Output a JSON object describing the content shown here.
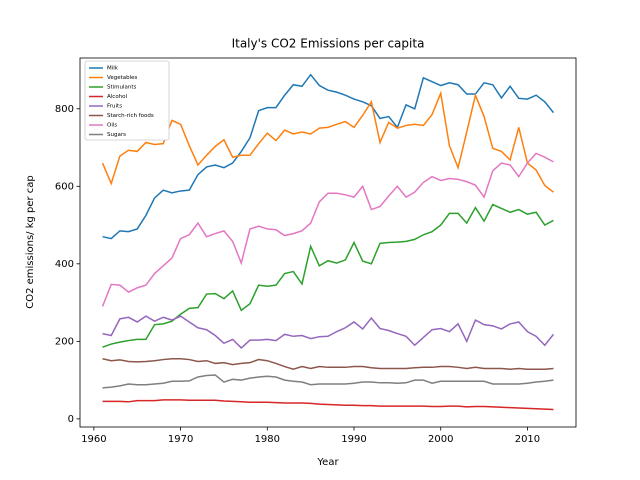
{
  "chart_data": {
    "type": "line",
    "title": "Italy's CO2 Emissions per capita",
    "xlabel": "Year",
    "ylabel": "CO2 emissions/ kg per cap",
    "x": [
      1961,
      1962,
      1963,
      1964,
      1965,
      1966,
      1967,
      1968,
      1969,
      1970,
      1971,
      1972,
      1973,
      1974,
      1975,
      1976,
      1977,
      1978,
      1979,
      1980,
      1981,
      1982,
      1983,
      1984,
      1985,
      1986,
      1987,
      1988,
      1989,
      1990,
      1991,
      1992,
      1993,
      1994,
      1995,
      1996,
      1997,
      1998,
      1999,
      2000,
      2001,
      2002,
      2003,
      2004,
      2005,
      2006,
      2007,
      2008,
      2009,
      2010,
      2011,
      2012,
      2013
    ],
    "series": [
      {
        "name": "Milk",
        "color": "#1f77b4",
        "values": [
          470,
          465,
          485,
          483,
          490,
          525,
          570,
          590,
          583,
          588,
          590,
          630,
          650,
          655,
          648,
          660,
          690,
          725,
          795,
          803,
          803,
          835,
          862,
          858,
          888,
          860,
          848,
          843,
          835,
          825,
          818,
          808,
          775,
          780,
          752,
          810,
          800,
          880,
          870,
          860,
          867,
          862,
          838,
          838,
          867,
          862,
          828,
          858,
          827,
          825,
          835,
          818,
          790
        ]
      },
      {
        "name": "Vegetables",
        "color": "#ff7f0e",
        "values": [
          660,
          607,
          678,
          693,
          690,
          713,
          708,
          710,
          770,
          760,
          705,
          655,
          680,
          703,
          720,
          675,
          680,
          680,
          710,
          737,
          718,
          745,
          735,
          740,
          735,
          750,
          752,
          760,
          767,
          752,
          783,
          818,
          713,
          765,
          750,
          757,
          760,
          757,
          785,
          840,
          705,
          648,
          740,
          835,
          780,
          698,
          690,
          668,
          752,
          660,
          642,
          602,
          585
        ]
      },
      {
        "name": "Stimulants",
        "color": "#2ca02c",
        "values": [
          185,
          193,
          198,
          202,
          205,
          205,
          243,
          245,
          252,
          270,
          285,
          287,
          322,
          323,
          310,
          330,
          280,
          297,
          345,
          342,
          345,
          375,
          380,
          348,
          445,
          395,
          408,
          402,
          410,
          455,
          407,
          400,
          453,
          455,
          456,
          458,
          463,
          475,
          483,
          500,
          530,
          530,
          505,
          545,
          510,
          553,
          543,
          533,
          540,
          528,
          533,
          500,
          512
        ]
      },
      {
        "name": "Alcohol",
        "color": "#d62728",
        "values": [
          45,
          45,
          45,
          44,
          47,
          47,
          47,
          49,
          49,
          49,
          48,
          48,
          48,
          48,
          46,
          45,
          44,
          43,
          43,
          43,
          42,
          41,
          41,
          41,
          40,
          38,
          37,
          36,
          35,
          35,
          34,
          34,
          33,
          33,
          33,
          33,
          33,
          33,
          32,
          32,
          33,
          33,
          31,
          32,
          32,
          31,
          30,
          29,
          28,
          27,
          26,
          25,
          24
        ]
      },
      {
        "name": "Fruits",
        "color": "#9467bd",
        "values": [
          220,
          215,
          258,
          262,
          250,
          265,
          252,
          262,
          255,
          265,
          250,
          235,
          230,
          215,
          195,
          205,
          183,
          203,
          203,
          205,
          202,
          218,
          213,
          215,
          207,
          212,
          213,
          225,
          235,
          250,
          232,
          260,
          233,
          228,
          220,
          213,
          190,
          210,
          230,
          233,
          225,
          245,
          200,
          255,
          243,
          240,
          232,
          245,
          250,
          225,
          213,
          190,
          218
        ]
      },
      {
        "name": "Starch-rich foods",
        "color": "#8c564b",
        "values": [
          155,
          150,
          152,
          148,
          147,
          148,
          150,
          153,
          155,
          155,
          153,
          148,
          150,
          143,
          145,
          140,
          143,
          145,
          153,
          150,
          143,
          135,
          128,
          135,
          130,
          135,
          133,
          133,
          133,
          135,
          135,
          132,
          130,
          130,
          130,
          130,
          132,
          133,
          133,
          135,
          135,
          133,
          130,
          133,
          130,
          130,
          130,
          128,
          130,
          128,
          128,
          128,
          130
        ]
      },
      {
        "name": "Oils",
        "color": "#e377c2",
        "values": [
          290,
          347,
          345,
          327,
          338,
          345,
          375,
          395,
          415,
          465,
          475,
          505,
          470,
          478,
          485,
          458,
          402,
          490,
          497,
          490,
          488,
          473,
          478,
          485,
          505,
          560,
          582,
          582,
          578,
          572,
          600,
          540,
          548,
          575,
          600,
          572,
          585,
          610,
          625,
          615,
          620,
          618,
          612,
          603,
          572,
          640,
          660,
          655,
          625,
          660,
          685,
          675,
          663
        ]
      },
      {
        "name": "Sugars",
        "color": "#7f7f7f",
        "values": [
          80,
          82,
          85,
          90,
          88,
          88,
          90,
          92,
          97,
          97,
          98,
          108,
          112,
          113,
          95,
          102,
          100,
          105,
          108,
          110,
          108,
          100,
          97,
          95,
          88,
          90,
          90,
          90,
          90,
          92,
          95,
          95,
          93,
          93,
          92,
          93,
          100,
          100,
          92,
          97,
          97,
          97,
          97,
          97,
          97,
          90,
          90,
          90,
          90,
          92,
          95,
          97,
          100
        ]
      }
    ],
    "xlim": [
      1958.4,
      2015.6
    ],
    "xticks": [
      1960,
      1970,
      1980,
      1990,
      2000,
      2010
    ],
    "ylim": [
      -21,
      931
    ],
    "yticks": [
      0,
      200,
      400,
      600,
      800
    ],
    "legend": "upper left"
  }
}
